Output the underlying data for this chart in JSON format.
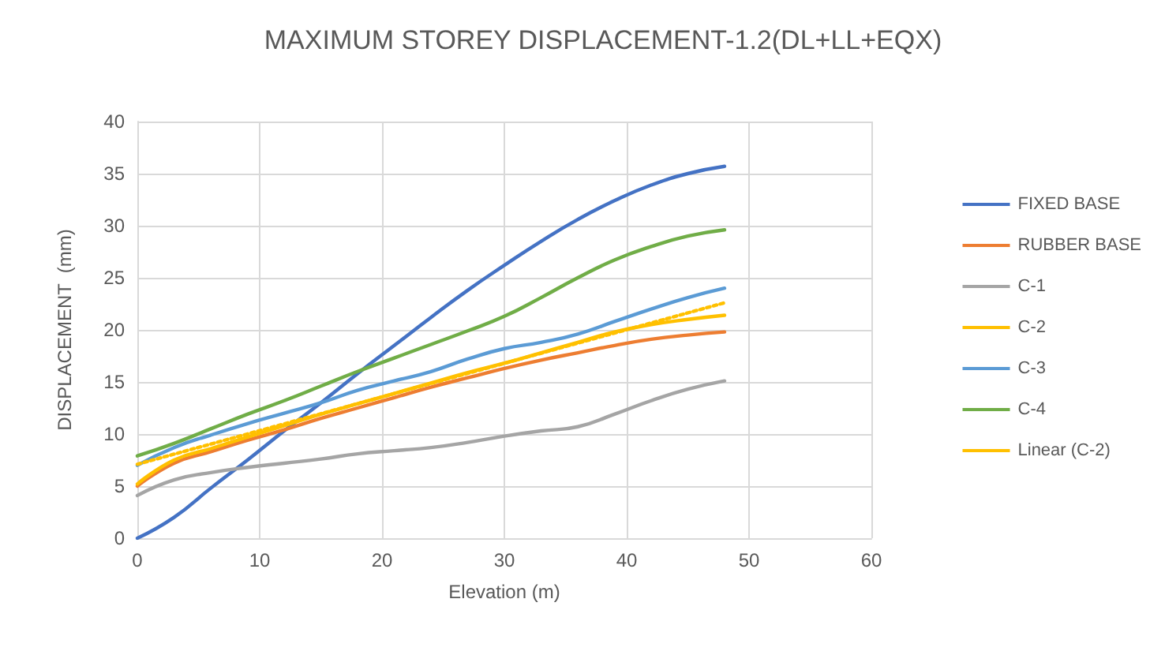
{
  "chart_data": {
    "type": "line",
    "title": "MAXIMUM STOREY DISPLACEMENT-1.2(DL+LL+EQX)",
    "xlabel": "Elevation (m)",
    "ylabel": "DISPLACEMENT  (mm)",
    "x": [
      0,
      3,
      6,
      9,
      12,
      15,
      18,
      21,
      24,
      27,
      30,
      33,
      36,
      39,
      42,
      45,
      48
    ],
    "xlim": [
      0,
      60
    ],
    "xticks": [
      0,
      10,
      20,
      30,
      40,
      50,
      60
    ],
    "ylim": [
      0,
      40
    ],
    "yticks": [
      0,
      5,
      10,
      15,
      20,
      25,
      30,
      35,
      40
    ],
    "grid": true,
    "legend": "right",
    "marker": "none",
    "line_style": "solid",
    "series": [
      {
        "name": "FIXED BASE",
        "color": "#4472c4",
        "values": [
          0,
          2,
          4.8,
          7.5,
          10.3,
          13,
          15.8,
          18.5,
          21.2,
          23.8,
          26.2,
          28.5,
          30.6,
          32.4,
          33.9,
          35,
          35.7
        ]
      },
      {
        "name": "RUBBER BASE",
        "color": "#ed7d31",
        "values": [
          5,
          7.2,
          8.3,
          9.4,
          10.4,
          11.5,
          12.5,
          13.5,
          14.5,
          15.4,
          16.3,
          17.1,
          17.8,
          18.5,
          19.1,
          19.5,
          19.8
        ]
      },
      {
        "name": "C-1",
        "color": "#a5a5a5",
        "values": [
          4.1,
          5.6,
          6.3,
          6.8,
          7.2,
          7.6,
          8.1,
          8.4,
          8.7,
          9.2,
          9.8,
          10.3,
          10.7,
          11.9,
          13.2,
          14.3,
          15.1
        ]
      },
      {
        "name": "C-2",
        "color": "#ffc000",
        "values": [
          5.2,
          7.5,
          8.6,
          9.7,
          10.8,
          11.9,
          12.9,
          13.9,
          14.9,
          15.9,
          16.8,
          17.8,
          18.8,
          19.8,
          20.5,
          21,
          21.4
        ]
      },
      {
        "name": "C-3",
        "color": "#5b9bd5",
        "values": [
          7,
          8.7,
          9.9,
          11,
          12,
          13,
          14.2,
          15.1,
          16,
          17.2,
          18.2,
          18.8,
          19.6,
          20.8,
          22,
          23.1,
          24
        ]
      },
      {
        "name": "C-4",
        "color": "#70ad47",
        "values": [
          7.9,
          9.1,
          10.5,
          11.9,
          13.2,
          14.6,
          16,
          17.3,
          18.6,
          19.9,
          21.3,
          23.1,
          25,
          26.7,
          28,
          29,
          29.6
        ]
      },
      {
        "name": "Linear (C-2)",
        "color": "#ffc000",
        "type": "line",
        "line_style": "dotted",
        "x": [
          0,
          48
        ],
        "values": [
          7.1,
          22.6
        ]
      }
    ]
  }
}
